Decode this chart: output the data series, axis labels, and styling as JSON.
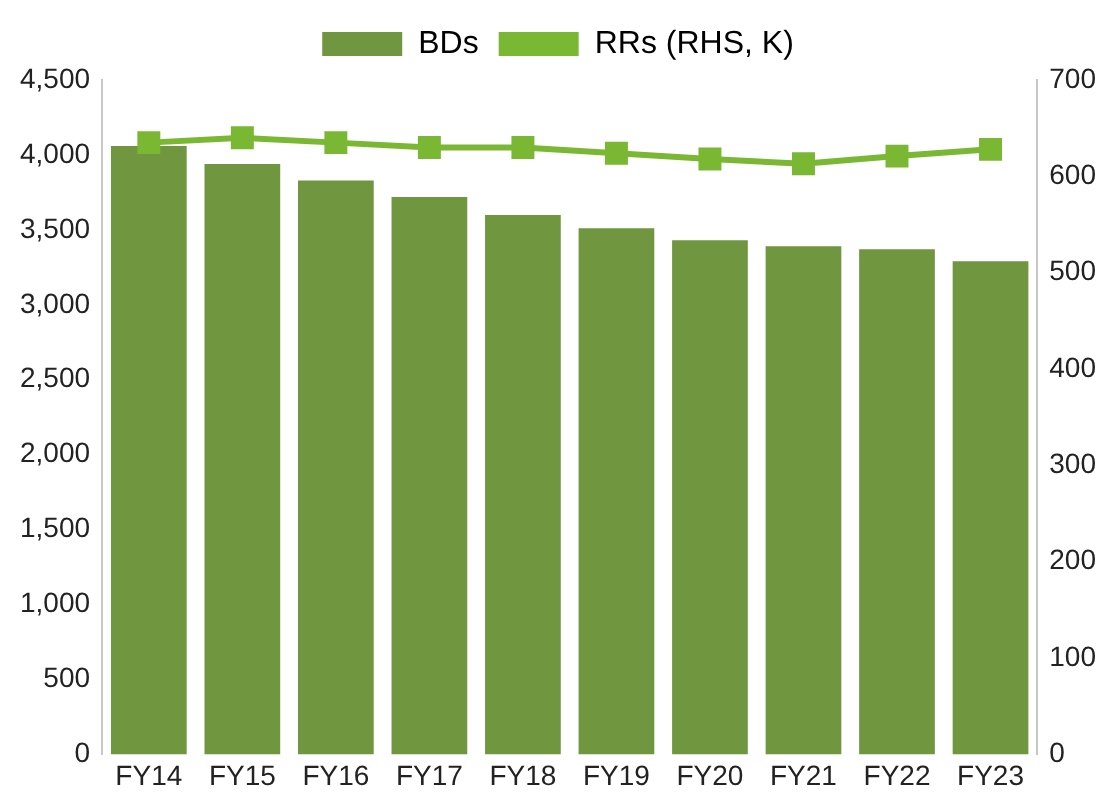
{
  "chart_data": {
    "type": "bar",
    "categories": [
      "FY14",
      "FY15",
      "FY16",
      "FY17",
      "FY18",
      "FY19",
      "FY20",
      "FY21",
      "FY22",
      "FY23"
    ],
    "series": [
      {
        "name": "BDs",
        "color": "#70963f",
        "values": [
          4060,
          3940,
          3830,
          3720,
          3600,
          3510,
          3430,
          3390,
          3370,
          3290
        ]
      },
      {
        "name": "RRs (RHS, K)",
        "type": "line",
        "axis": "y2",
        "color": "#7ab833",
        "values": [
          635,
          640,
          635,
          630,
          630,
          624,
          618,
          613,
          621,
          628
        ]
      }
    ],
    "ylim": [
      0,
      4500
    ],
    "yticks": [
      {
        "value": 0,
        "label": "0"
      },
      {
        "value": 500,
        "label": "500"
      },
      {
        "value": 1000,
        "label": "1,000"
      },
      {
        "value": 1500,
        "label": "1,500"
      },
      {
        "value": 2000,
        "label": "2,000"
      },
      {
        "value": 2500,
        "label": "2,500"
      },
      {
        "value": 3000,
        "label": "3,000"
      },
      {
        "value": 3500,
        "label": "3,500"
      },
      {
        "value": 4000,
        "label": "4,000"
      },
      {
        "value": 4500,
        "label": "4,500"
      }
    ],
    "y2lim": [
      0,
      700
    ],
    "y2ticks": [
      0,
      100,
      200,
      300,
      400,
      500,
      600,
      700
    ],
    "grid": false,
    "legend": "top",
    "marker": "square"
  }
}
